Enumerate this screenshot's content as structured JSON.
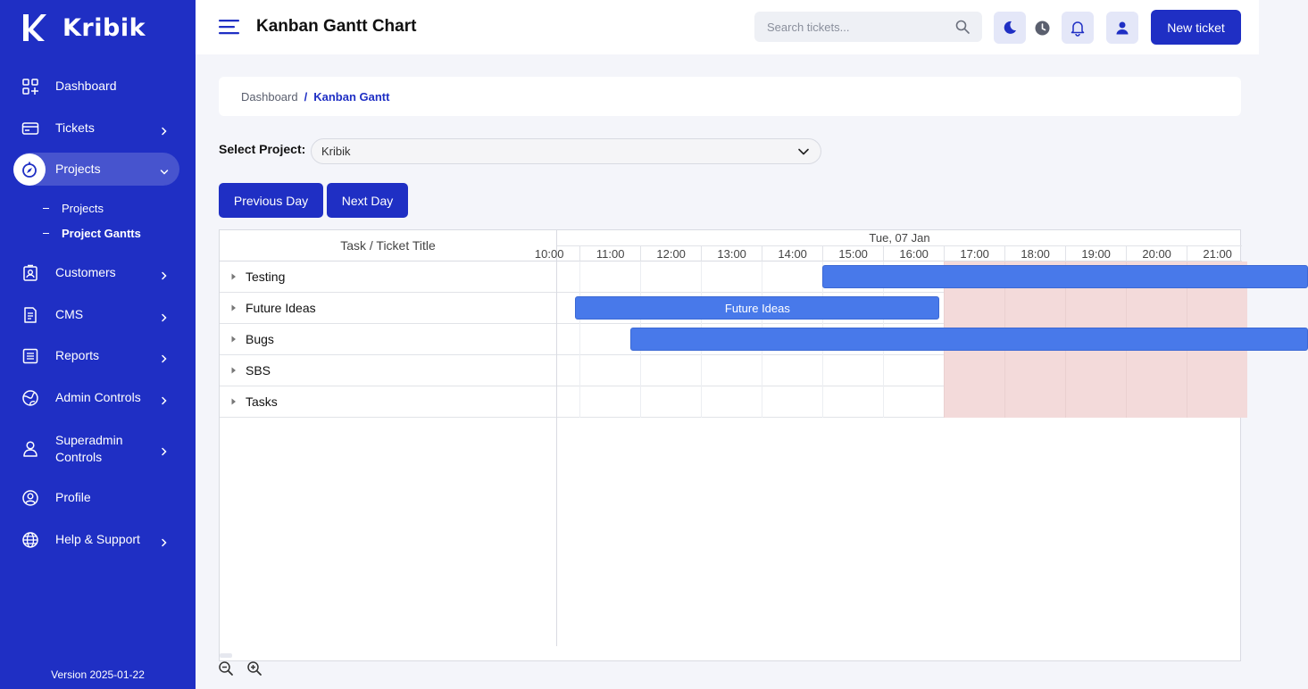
{
  "app": {
    "name": "Kribik",
    "version": "Version 2025-01-22"
  },
  "sidebar": {
    "items": [
      {
        "label": "Dashboard",
        "icon": "dashboard-icon",
        "chevron": false
      },
      {
        "label": "Tickets",
        "icon": "ticket-icon",
        "chevron": true
      },
      {
        "label": "Projects",
        "icon": "compass-icon",
        "chevron": true,
        "active": true
      },
      {
        "label": "Customers",
        "icon": "id-badge-icon",
        "chevron": true
      },
      {
        "label": "CMS",
        "icon": "document-icon",
        "chevron": true
      },
      {
        "label": "Reports",
        "icon": "list-icon",
        "chevron": true
      },
      {
        "label": "Admin Controls",
        "icon": "globe-icon",
        "chevron": true
      },
      {
        "label": "Superadmin Controls",
        "icon": "user-icon",
        "chevron": true
      },
      {
        "label": "Profile",
        "icon": "profile-icon",
        "chevron": false
      },
      {
        "label": "Help & Support",
        "icon": "globe-alt-icon",
        "chevron": true
      }
    ],
    "subitems": [
      {
        "label": "Projects"
      },
      {
        "label": "Project Gantts",
        "current": true
      }
    ]
  },
  "header": {
    "title": "Kanban Gantt Chart",
    "search_placeholder": "Search tickets...",
    "new_ticket_label": "New ticket"
  },
  "breadcrumb": {
    "home": "Dashboard",
    "separator": "/",
    "current": "Kanban Gantt"
  },
  "project": {
    "label": "Select Project:",
    "selected": "Kribik"
  },
  "buttons": {
    "previous_day": "Previous Day",
    "next_day": "Next Day"
  },
  "colors": {
    "brand": "#1f2fc4",
    "bar": "#4879ea",
    "offhours": "#f3dada"
  },
  "gantt": {
    "column_header": "Task / Ticket Title",
    "date_label": "Tue, 07 Jan",
    "hours": [
      "10:00",
      "11:00",
      "12:00",
      "13:00",
      "14:00",
      "15:00",
      "16:00",
      "17:00",
      "18:00",
      "19:00",
      "20:00",
      "21:00"
    ],
    "view_start_hour": 10.63,
    "workday_end_hour": 17,
    "tasks": [
      {
        "name": "Testing",
        "start": 15.0,
        "end": 23.0,
        "label": ""
      },
      {
        "name": "Future Ideas",
        "start": 10.93,
        "end": 16.93,
        "label": "Future Ideas"
      },
      {
        "name": "Bugs",
        "start": 11.83,
        "end": 23.0,
        "label": ""
      },
      {
        "name": "SBS",
        "start": null,
        "end": null,
        "label": ""
      },
      {
        "name": "Tasks",
        "start": null,
        "end": null,
        "label": ""
      }
    ]
  }
}
